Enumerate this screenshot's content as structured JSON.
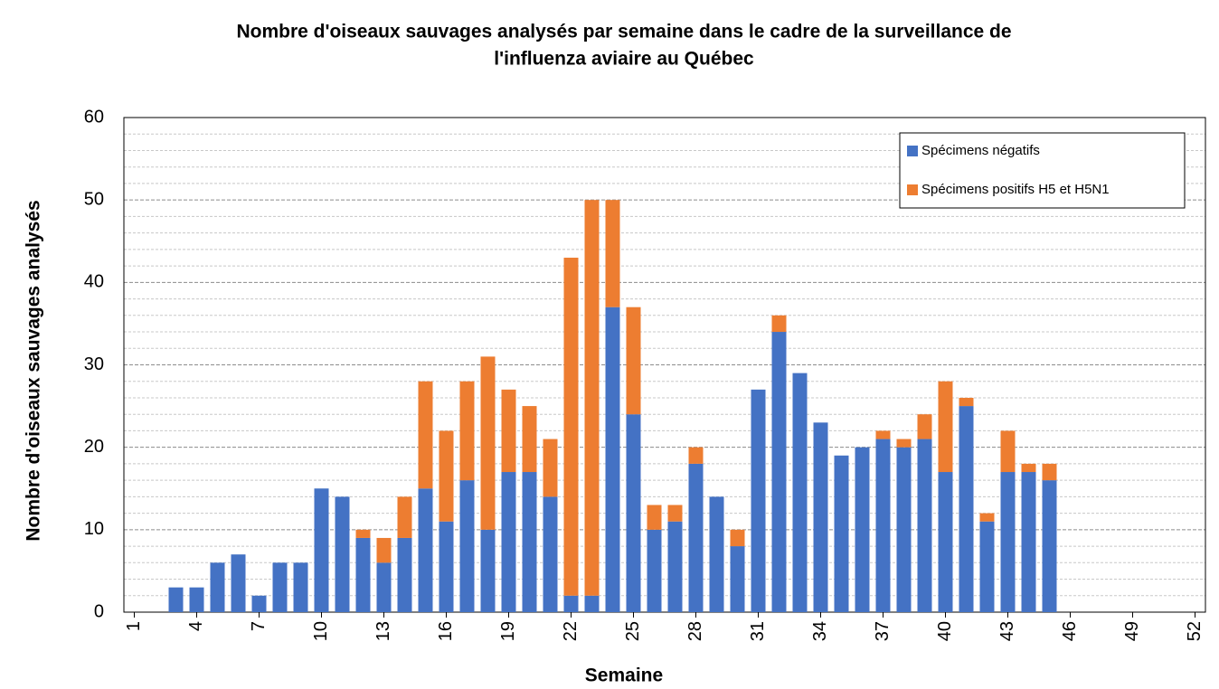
{
  "chart_data": {
    "type": "stacked_bar",
    "title": [
      "Nombre d'oiseaux sauvages analysés par semaine dans le cadre de la surveillance de",
      "l'influenza aviaire au Québec"
    ],
    "x_label": "Semaine",
    "y_label": "Nombre d'oiseaux sauvages analysés",
    "categories": [
      "1",
      null,
      null,
      "4",
      null,
      null,
      "7",
      null,
      null,
      "10",
      null,
      null,
      "13",
      null,
      null,
      "16",
      null,
      null,
      "19",
      null,
      null,
      "22",
      null,
      null,
      "25",
      null,
      null,
      "28",
      null,
      null,
      "31",
      null,
      null,
      "34",
      null,
      null,
      "37",
      null,
      null,
      "40",
      null,
      null,
      "43",
      null,
      null,
      "46",
      null,
      null,
      "49",
      null,
      null,
      "52"
    ],
    "series": [
      {
        "name": "Spécimens négatifs",
        "color": "#4472c4",
        "values": [
          0,
          0,
          3,
          3,
          6,
          7,
          2,
          6,
          6,
          15,
          14,
          9,
          6,
          9,
          15,
          11,
          16,
          10,
          17,
          17,
          14,
          2,
          2,
          37,
          24,
          10,
          11,
          18,
          14,
          8,
          27,
          34,
          29,
          23,
          19,
          20,
          21,
          20,
          21,
          17,
          25,
          11,
          17,
          17,
          16,
          0,
          0,
          0,
          0,
          0,
          0,
          0
        ]
      },
      {
        "name": "Spécimens positifs H5 et H5N1",
        "color": "#ed7d31",
        "values": [
          0,
          0,
          0,
          0,
          0,
          0,
          0,
          0,
          0,
          0,
          0,
          1,
          3,
          5,
          13,
          11,
          12,
          21,
          10,
          8,
          7,
          41,
          48,
          13,
          13,
          3,
          2,
          2,
          0,
          2,
          0,
          2,
          0,
          0,
          0,
          0,
          1,
          1,
          3,
          11,
          1,
          1,
          5,
          1,
          2,
          0,
          0,
          0,
          0,
          0,
          0,
          0
        ]
      }
    ],
    "ylim": [
      0,
      60
    ],
    "yticks": [
      0,
      10,
      20,
      30,
      40,
      50,
      60
    ],
    "yminor": [
      2,
      4,
      6,
      8,
      12,
      14,
      16,
      18,
      22,
      24,
      26,
      28,
      32,
      34,
      36,
      38,
      42,
      44,
      46,
      48,
      52,
      54,
      56,
      58
    ],
    "grid": true,
    "legend": "upper right"
  }
}
